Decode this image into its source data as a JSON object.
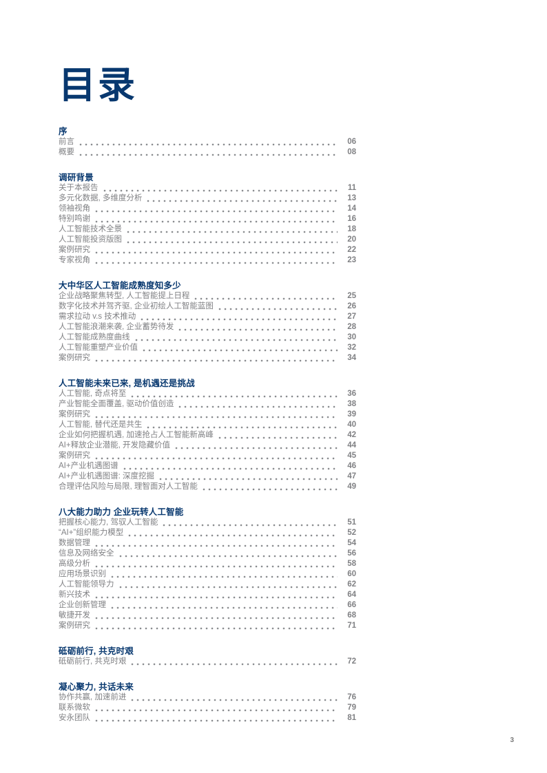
{
  "page": {
    "title": "目录",
    "page_number": "3",
    "colors": {
      "navy": "#08386f",
      "text_gray": "#808184"
    }
  },
  "sections": [
    {
      "heading": "序",
      "entries": [
        {
          "label": "前言",
          "page": "06"
        },
        {
          "label": "概要",
          "page": "08"
        }
      ]
    },
    {
      "heading": "调研背景",
      "entries": [
        {
          "label": "关于本报告",
          "page": "11"
        },
        {
          "label": "多元化数据, 多维度分析",
          "page": "13"
        },
        {
          "label": "领袖视角",
          "page": "14"
        },
        {
          "label": "特别鸣谢",
          "page": "16"
        },
        {
          "label": "人工智能技术全景",
          "page": "18"
        },
        {
          "label": "人工智能投资版图",
          "page": "20"
        },
        {
          "label": "案例研究",
          "page": "22"
        },
        {
          "label": "专家视角",
          "page": "23"
        }
      ]
    },
    {
      "heading": "大中华区人工智能成熟度知多少",
      "entries": [
        {
          "label": "企业战略聚焦转型, 人工智能提上日程",
          "page": "25"
        },
        {
          "label": "数字化技术并驾齐驱, 企业初绘人工智能蓝图",
          "page": "26"
        },
        {
          "label": "需求拉动 v.s 技术推动",
          "page": "27"
        },
        {
          "label": "人工智能浪潮来袭, 企业蓄势待发",
          "page": "28"
        },
        {
          "label": "人工智能成熟度曲线",
          "page": "30"
        },
        {
          "label": "人工智能重塑产业价值",
          "page": "32"
        },
        {
          "label": "案例研究",
          "page": "34"
        }
      ]
    },
    {
      "heading": "人工智能未来已来, 是机遇还是挑战",
      "entries": [
        {
          "label": "人工智能, 奇点将至",
          "page": "36"
        },
        {
          "label": "产业智能全面覆盖, 驱动价值创造",
          "page": "38"
        },
        {
          "label": "案例研究",
          "page": "39"
        },
        {
          "label": "人工智能, 替代还是共生",
          "page": "40"
        },
        {
          "label": "企业如何把握机遇, 加速抢占人工智能新高峰",
          "page": "42"
        },
        {
          "label": "AI+释放企业潜能, 开发隐藏价值",
          "page": "44"
        },
        {
          "label": "案例研究",
          "page": "45"
        },
        {
          "label": "AI+产业机遇图谱",
          "page": "46"
        },
        {
          "label": "AI+产业机遇图谱: 深度挖掘",
          "page": "47"
        },
        {
          "label": "合理评估风险与局限, 理智面对人工智能",
          "page": "49"
        }
      ]
    },
    {
      "heading": "八大能力助力 企业玩转人工智能",
      "entries": [
        {
          "label": "把握核心能力, 驾驭人工智能",
          "page": "51"
        },
        {
          "label": "“AI+”组织能力模型",
          "page": "52"
        },
        {
          "label": "数据管理",
          "page": "54"
        },
        {
          "label": "信息及网络安全",
          "page": "56"
        },
        {
          "label": "高级分析",
          "page": "58"
        },
        {
          "label": "应用场景识别",
          "page": "60"
        },
        {
          "label": "人工智能领导力",
          "page": "62"
        },
        {
          "label": "新兴技术",
          "page": "64"
        },
        {
          "label": "企业创新管理",
          "page": "66"
        },
        {
          "label": "敏捷开发",
          "page": "68"
        },
        {
          "label": "案例研究",
          "page": "71"
        }
      ]
    },
    {
      "heading": "砥砺前行, 共克时艰",
      "entries": [
        {
          "label": "砥砺前行, 共克时艰",
          "page": "72"
        }
      ]
    },
    {
      "heading": "凝心聚力, 共话未来",
      "entries": [
        {
          "label": "协作共赢, 加速前进",
          "page": "76"
        },
        {
          "label": "联系微软",
          "page": "79"
        },
        {
          "label": "安永团队",
          "page": "81"
        }
      ]
    }
  ]
}
